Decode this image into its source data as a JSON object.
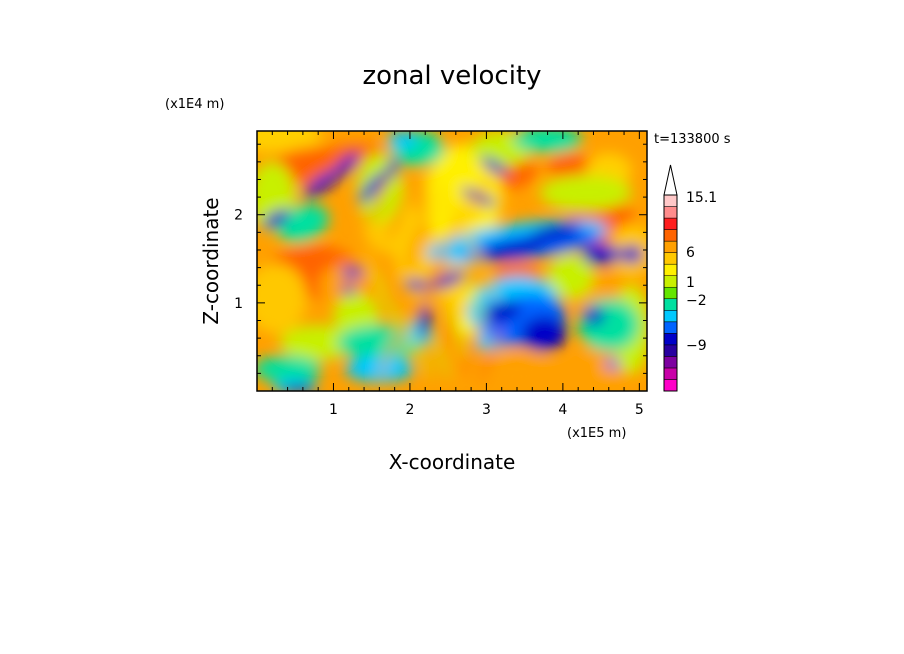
{
  "chart_data": {
    "type": "heatmap",
    "title": "zonal velocity",
    "xlabel": "X-coordinate",
    "ylabel": "Z-coordinate",
    "x_unit": "(x1E5 m)",
    "y_unit": "(x1E4 m)",
    "time_label": "t=133800 s",
    "xlim": [
      0,
      5.1
    ],
    "ylim": [
      0,
      2.95
    ],
    "x_ticks": [
      "1",
      "2",
      "3",
      "4",
      "5"
    ],
    "y_ticks": [
      "1",
      "2"
    ],
    "colorbar": {
      "max_label": "15.1",
      "tick_labels": [
        "15.1",
        "6",
        "1",
        "−2",
        "−9"
      ],
      "levels": [
        {
          "color": "#ff00c8"
        },
        {
          "color": "#c800a8"
        },
        {
          "color": "#7d00a0"
        },
        {
          "color": "#2800a0"
        },
        {
          "color": "#0000c8"
        },
        {
          "color": "#0064ff"
        },
        {
          "color": "#00c8ff"
        },
        {
          "color": "#00e0a0"
        },
        {
          "color": "#64e600"
        },
        {
          "color": "#c8f000"
        },
        {
          "color": "#fff000"
        },
        {
          "color": "#ffc800"
        },
        {
          "color": "#ffa000"
        },
        {
          "color": "#ff6400"
        },
        {
          "color": "#ff1e1e"
        },
        {
          "color": "#ff8c8c"
        },
        {
          "color": "#ffc8c8"
        }
      ]
    }
  }
}
